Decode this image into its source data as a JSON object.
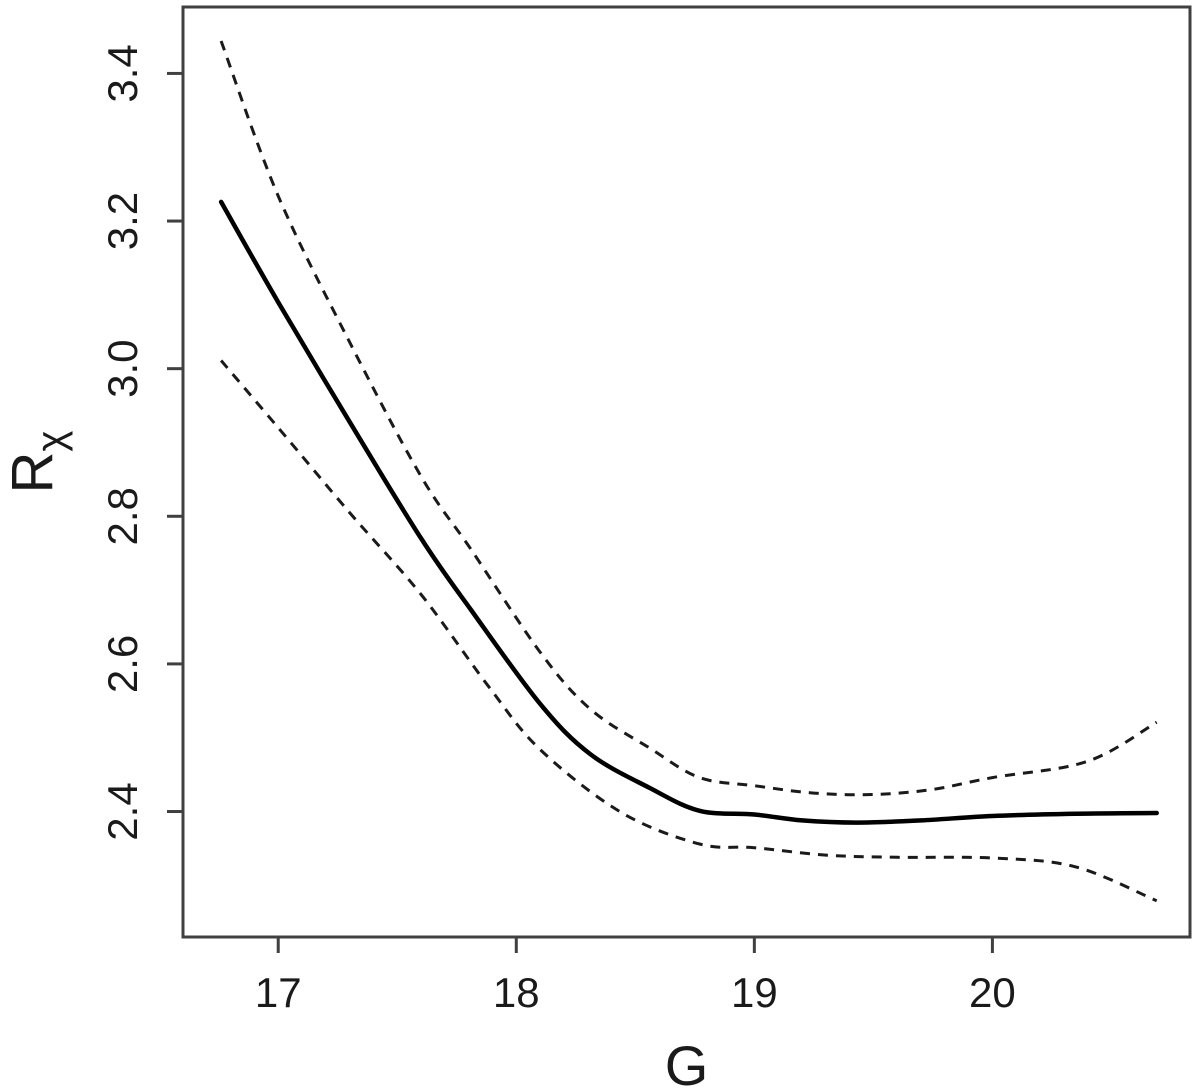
{
  "figure": {
    "background": "#ffffff"
  },
  "chart_data": {
    "type": "line",
    "title": "",
    "xlabel": "G",
    "ylabel": "R",
    "ylabel_subscript": "χ",
    "xlim": [
      16.6,
      20.83
    ],
    "ylim": [
      2.23,
      3.49
    ],
    "grid": false,
    "legend": "none",
    "frame": "full-box",
    "x_ticks": {
      "values": [
        17,
        18,
        19,
        20
      ],
      "labels": [
        "17",
        "18",
        "19",
        "20"
      ]
    },
    "y_ticks": {
      "values": [
        2.4,
        2.6,
        2.8,
        3.0,
        3.2,
        3.4
      ],
      "labels": [
        "2.4",
        "2.6",
        "2.8",
        "3.0",
        "3.2",
        "3.4"
      ]
    },
    "colors": {
      "fit_line": "#000000",
      "confidence_band": "#1a1a1a",
      "frame": "#404040",
      "text": "#1a1a1a",
      "background": "#ffffff"
    },
    "series": [
      {
        "name": "fitted-curve",
        "style": "solid",
        "width": 4.5,
        "points": [
          [
            16.76,
            3.226
          ],
          [
            17.0,
            3.09
          ],
          [
            17.3,
            2.928
          ],
          [
            17.6,
            2.77
          ],
          [
            17.81,
            2.673
          ],
          [
            18.1,
            2.546
          ],
          [
            18.31,
            2.478
          ],
          [
            18.56,
            2.432
          ],
          [
            18.77,
            2.401
          ],
          [
            19.0,
            2.396
          ],
          [
            19.2,
            2.388
          ],
          [
            19.43,
            2.385
          ],
          [
            19.7,
            2.388
          ],
          [
            20.0,
            2.394
          ],
          [
            20.35,
            2.397
          ],
          [
            20.69,
            2.398
          ]
        ]
      },
      {
        "name": "upper-confidence-limit",
        "style": "dashed",
        "width": 3,
        "points": [
          [
            16.76,
            3.444
          ],
          [
            17.0,
            3.234
          ],
          [
            17.3,
            3.036
          ],
          [
            17.6,
            2.854
          ],
          [
            17.81,
            2.755
          ],
          [
            18.1,
            2.616
          ],
          [
            18.31,
            2.539
          ],
          [
            18.56,
            2.486
          ],
          [
            18.77,
            2.446
          ],
          [
            19.0,
            2.435
          ],
          [
            19.25,
            2.425
          ],
          [
            19.5,
            2.423
          ],
          [
            19.75,
            2.43
          ],
          [
            20.0,
            2.446
          ],
          [
            20.4,
            2.468
          ],
          [
            20.69,
            2.521
          ]
        ]
      },
      {
        "name": "lower-confidence-limit",
        "style": "dashed",
        "width": 3,
        "points": [
          [
            16.76,
            3.011
          ],
          [
            17.0,
            2.92
          ],
          [
            17.3,
            2.805
          ],
          [
            17.6,
            2.694
          ],
          [
            17.88,
            2.571
          ],
          [
            18.1,
            2.484
          ],
          [
            18.44,
            2.399
          ],
          [
            18.77,
            2.356
          ],
          [
            19.0,
            2.351
          ],
          [
            19.3,
            2.341
          ],
          [
            19.6,
            2.338
          ],
          [
            20.0,
            2.337
          ],
          [
            20.35,
            2.325
          ],
          [
            20.69,
            2.279
          ]
        ]
      }
    ]
  }
}
